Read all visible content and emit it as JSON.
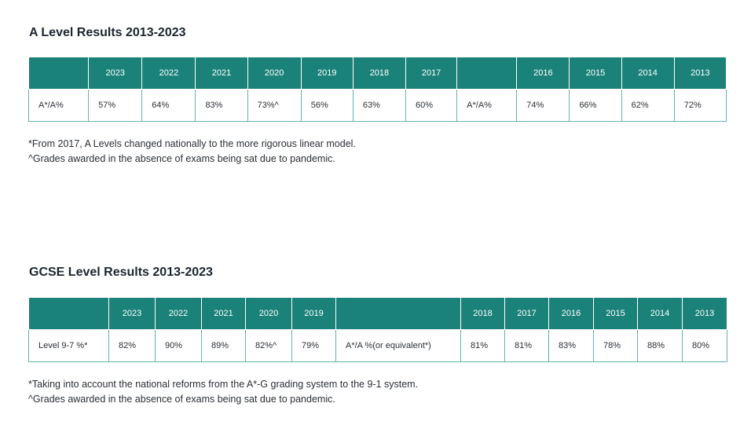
{
  "a_level": {
    "title": "A Level Results 2013-2023",
    "headers": [
      "",
      "2023",
      "2022",
      "2021",
      "2020",
      "2019",
      "2018",
      "2017",
      "",
      "2016",
      "2015",
      "2014",
      "2013"
    ],
    "row": [
      "A*/A%",
      "57%",
      "64%",
      "83%",
      "73%^",
      "56%",
      "63%",
      "60%",
      "A*/A%",
      "74%",
      "66%",
      "62%",
      "72%"
    ],
    "notes": [
      "*From 2017, A Levels changed nationally to the more rigorous linear model.",
      "^Grades awarded in the absence of exams being sat due to pandemic."
    ]
  },
  "gcse": {
    "title": "GCSE Level Results 2013-2023",
    "headers": [
      "",
      "2023",
      "2022",
      "2021",
      "2020",
      "2019",
      "",
      "2018",
      "2017",
      "2016",
      "2015",
      "2014",
      "2013"
    ],
    "row": [
      "Level 9-7 %*",
      "82%",
      "90%",
      "89%",
      "82%^",
      "79%",
      "A*/A %(or equivalent*)",
      "81%",
      "81%",
      "83%",
      "78%",
      "88%",
      "80%"
    ],
    "notes": [
      "*Taking into account the national reforms from the A*-G grading system to the 9-1 system.",
      "^Grades awarded in the absence of exams being sat due to pandemic."
    ]
  }
}
